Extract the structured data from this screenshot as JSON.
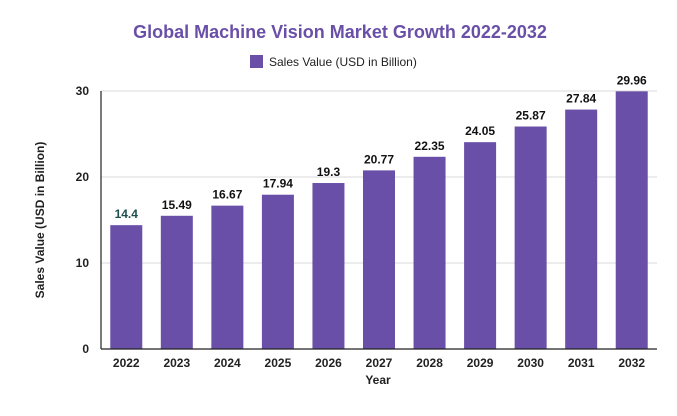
{
  "chart_data": {
    "type": "bar",
    "title": "Global Machine Vision Market Growth 2022-2032",
    "categories": [
      "2022",
      "2023",
      "2024",
      "2025",
      "2026",
      "2027",
      "2028",
      "2029",
      "2030",
      "2031",
      "2032"
    ],
    "series": [
      {
        "name": "Sales Value (USD in Billion)",
        "values": [
          14.4,
          15.49,
          16.67,
          17.94,
          19.3,
          20.77,
          22.35,
          24.05,
          25.87,
          27.84,
          29.96
        ],
        "labels": [
          "14.4",
          "15.49",
          "16.67",
          "17.94",
          "19.3",
          "20.77",
          "22.35",
          "24.05",
          "25.87",
          "27.84",
          "29.96"
        ]
      }
    ],
    "xlabel": "Year",
    "ylabel": "Sales Value (USD in Billion)",
    "ylim": [
      0,
      30
    ],
    "yticks": [
      "0",
      "10",
      "20",
      "30"
    ],
    "grid": true,
    "legend_position": "top"
  },
  "colors": {
    "bar": "#6a4fa8",
    "title": "#6a4fa8",
    "grid": "#d9d9d9",
    "axis": "#222222",
    "label": "#111111",
    "first_label": "#1f4e4e"
  }
}
